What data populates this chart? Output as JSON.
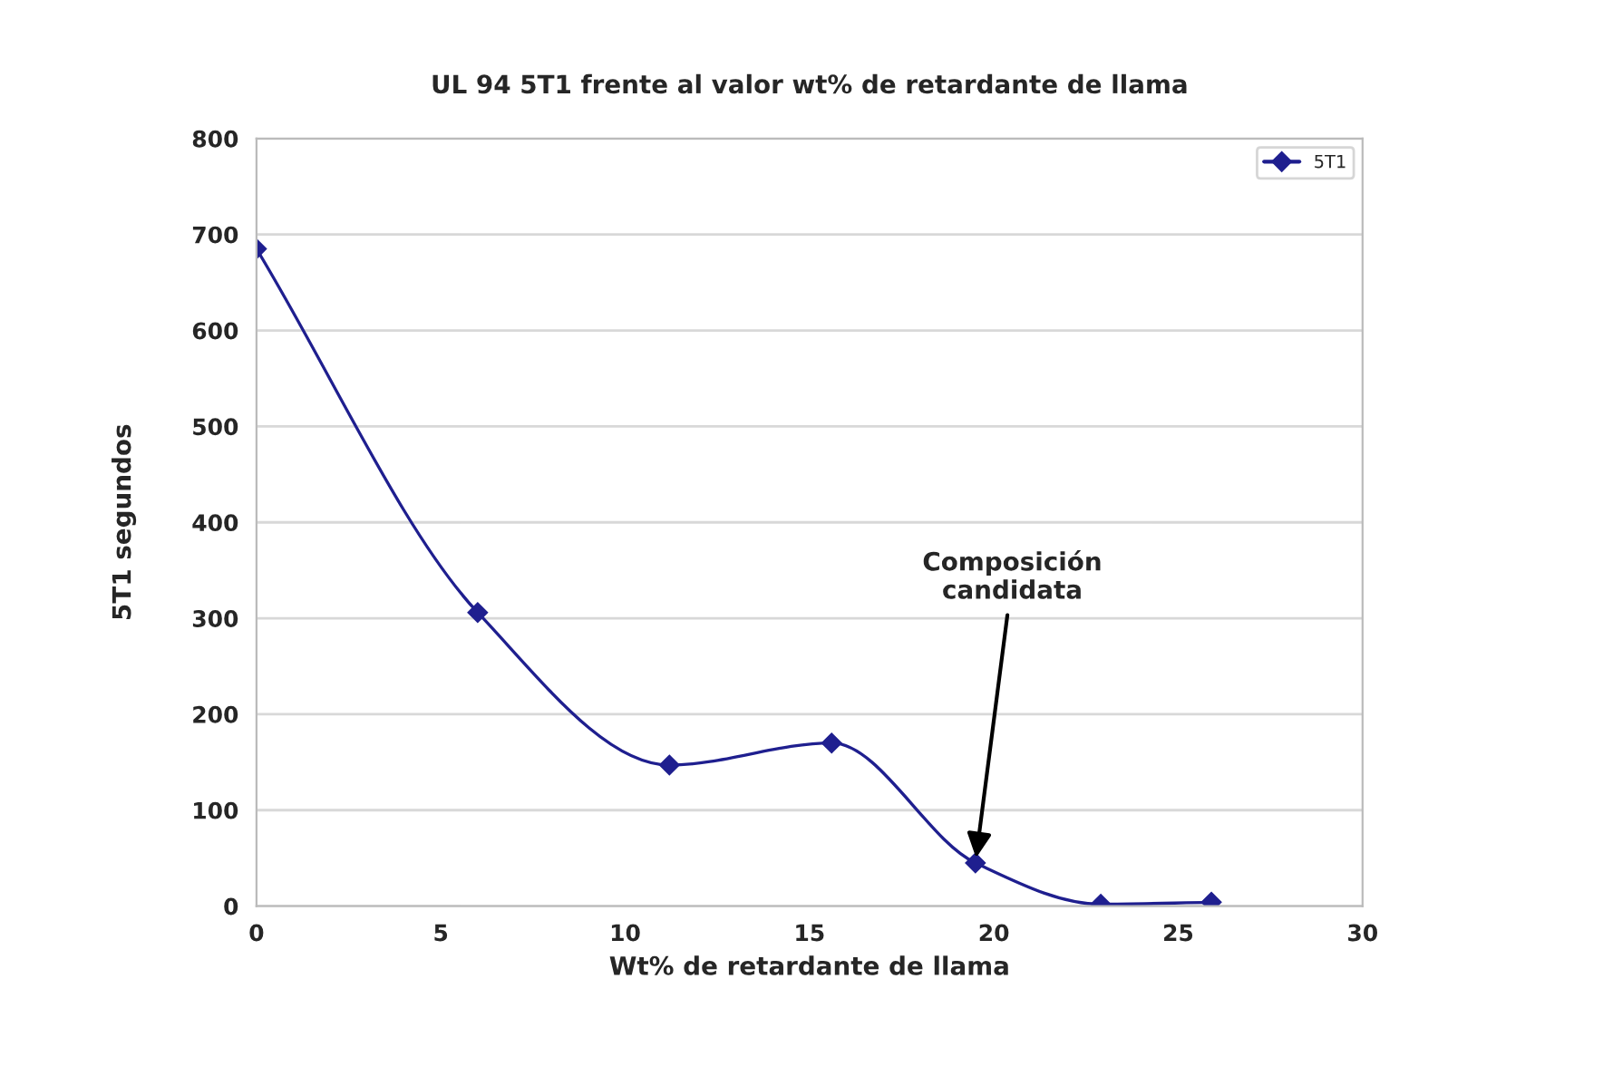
{
  "chart_data": {
    "type": "line",
    "title": "UL 94 5T1 frente al valor wt% de retardante de llama",
    "xlabel": "Wt% de retardante de llama",
    "ylabel": "5T1 segundos",
    "x": [
      0,
      6,
      11.2,
      15.6,
      19.5,
      22.9,
      25.9
    ],
    "series": [
      {
        "name": "5T1",
        "color": "#1f1f8f",
        "values": [
          685,
          306,
          147,
          170,
          45,
          2,
          4
        ]
      }
    ],
    "annotations": [
      {
        "text": "Composición\ncandidata",
        "x": 19.5,
        "y": 45
      }
    ],
    "xlim": [
      0,
      30
    ],
    "xticks": [
      0,
      5,
      10,
      15,
      20,
      25,
      30
    ],
    "ylim": [
      0,
      800
    ],
    "yticks": [
      0,
      100,
      200,
      300,
      400,
      500,
      600,
      700,
      800
    ],
    "grid": "y",
    "legend": "top right",
    "marker": "diamond",
    "line_style": "solid"
  }
}
